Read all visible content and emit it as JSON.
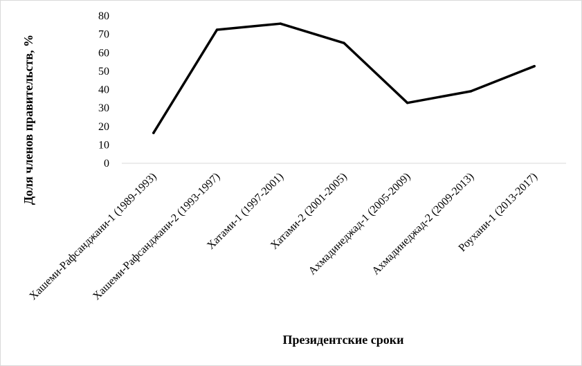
{
  "chart_data": {
    "type": "line",
    "title": "",
    "xlabel": "Президентские сроки",
    "ylabel": "Доля членов правительств, %",
    "categories": [
      "Хашеми-Рафсанджани-1 (1989-1993)",
      "Хашеми-Рафсанджани-2 (1993-1997)",
      "Хатами-1 (1997-2001)",
      "Хатами-2 (2001-2005)",
      "Ахмадинеджад-1 (2005-2009)",
      "Ахмадинеджад-2 (2009-2013)",
      "Роухани-1 (2013-2017)"
    ],
    "series": [
      {
        "values": [
          16.5,
          72.5,
          75.8,
          65.3,
          32.8,
          39.1,
          52.7
        ],
        "color": "#000000"
      }
    ],
    "yticks": [
      "0",
      "10",
      "20",
      "30",
      "40",
      "50",
      "60",
      "70",
      "80"
    ],
    "ylim": [
      0,
      80
    ],
    "grid": false,
    "legend": "none"
  }
}
